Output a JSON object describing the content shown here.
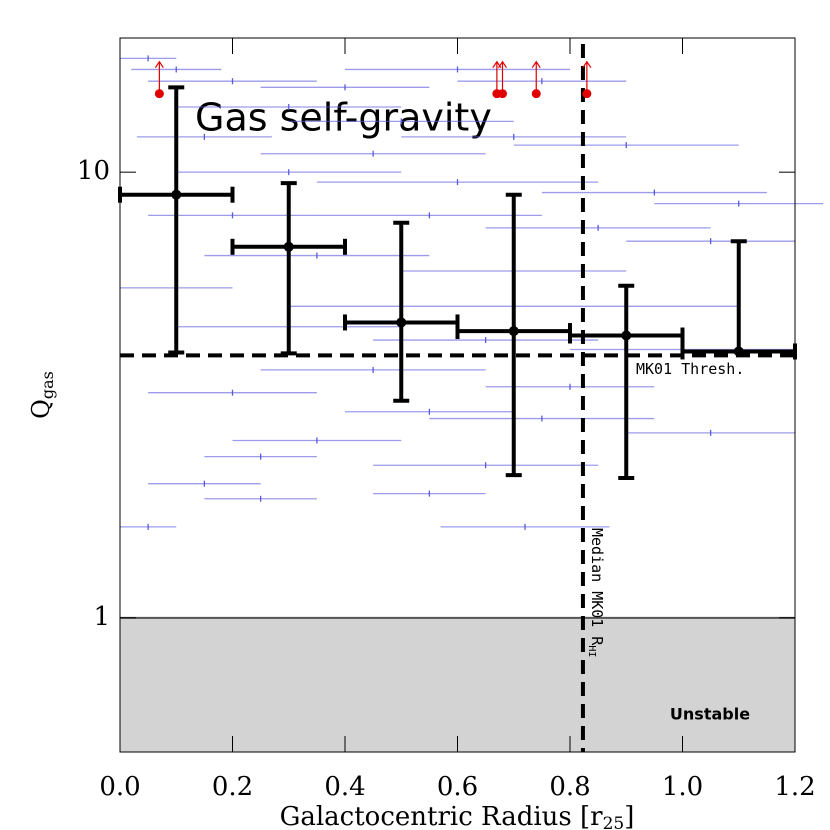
{
  "chart_data": {
    "type": "scatter",
    "title": "Gas self-gravity",
    "xlabel": {
      "main": "Galactocentric Radius [r",
      "sub": "25",
      "end": "]"
    },
    "ylabel": {
      "main": "Q",
      "sub": "gas"
    },
    "xlim": [
      0,
      1.2
    ],
    "ylim": [
      0.5,
      20
    ],
    "log_y": true,
    "xticks": [
      {
        "value": 0,
        "label": "0.0"
      },
      {
        "value": 0.2,
        "label": "0.2"
      },
      {
        "value": 0.4,
        "label": "0.4"
      },
      {
        "value": 0.6,
        "label": "0.6"
      },
      {
        "value": 0.8,
        "label": "0.8"
      },
      {
        "value": 1.0,
        "label": "1.0"
      },
      {
        "value": 1.2,
        "label": "1.2"
      }
    ],
    "yticks": [
      1,
      10
    ],
    "galaxies": {
      "color": "#5a5adc",
      "x": [
        0.05,
        0.1,
        0.2,
        0.4,
        0.6,
        0.75,
        0.3,
        0.5,
        0.15,
        0.45,
        0.7,
        0.9,
        0.3,
        0.6,
        0.95,
        1.1,
        0.2,
        0.55,
        0.85,
        1.05,
        0.35,
        0.7,
        0.1,
        0.5,
        0.9,
        0.3,
        0.65,
        1.0,
        0.45,
        0.8,
        0.2,
        0.55,
        0.75,
        1.05,
        0.35,
        0.25,
        0.65,
        0.15,
        0.25,
        0.55,
        0.05,
        0.72
      ],
      "y": [
        18,
        17,
        16,
        15.5,
        17,
        16,
        14,
        13,
        12,
        11,
        12,
        11.5,
        10,
        9.5,
        9,
        8.5,
        8,
        8,
        7.5,
        7,
        6.5,
        6,
        5.5,
        5,
        5,
        4.5,
        4.2,
        4.0,
        3.6,
        3.3,
        3.2,
        2.9,
        2.8,
        2.6,
        2.5,
        2.3,
        2.2,
        2.0,
        1.85,
        1.9,
        1.6,
        1.6
      ],
      "xerr": [
        0.05,
        0.08,
        0.15,
        0.15,
        0.2,
        0.15,
        0.2,
        0.2,
        0.12,
        0.2,
        0.2,
        0.2,
        0.2,
        0.25,
        0.2,
        0.15,
        0.15,
        0.2,
        0.2,
        0.15,
        0.2,
        0.2,
        0.1,
        0.2,
        0.2,
        0.2,
        0.2,
        0.2,
        0.2,
        0.15,
        0.15,
        0.15,
        0.2,
        0.15,
        0.15,
        0.1,
        0.2,
        0.1,
        0.1,
        0.1,
        0.05,
        0.15
      ]
    },
    "binned": {
      "color": "#000000",
      "x": [
        0.1,
        0.3,
        0.5,
        0.7,
        0.9,
        1.1
      ],
      "xerr": [
        0.1,
        0.1,
        0.1,
        0.1,
        0.1,
        0.1
      ],
      "y": [
        8.9,
        6.8,
        4.6,
        4.4,
        4.3,
        3.96
      ],
      "y_low": [
        3.94,
        3.92,
        3.07,
        2.09,
        2.06,
        3.96
      ],
      "y_high": [
        15.5,
        9.45,
        7.7,
        8.9,
        5.56,
        7.0
      ]
    },
    "lower_limits": {
      "color": "#e00000",
      "x": [
        0.07,
        0.67,
        0.68,
        0.74,
        0.83
      ],
      "y": [
        15,
        15,
        15,
        15,
        15
      ]
    },
    "threshold": {
      "value": 3.88,
      "label": "MK01 Thresh."
    },
    "median_radius": {
      "value": 0.823,
      "label": "Median MK01 R",
      "sub": "HI"
    },
    "unstable": {
      "below": 1,
      "label": "Unstable",
      "color": "#d3d3d3"
    }
  }
}
